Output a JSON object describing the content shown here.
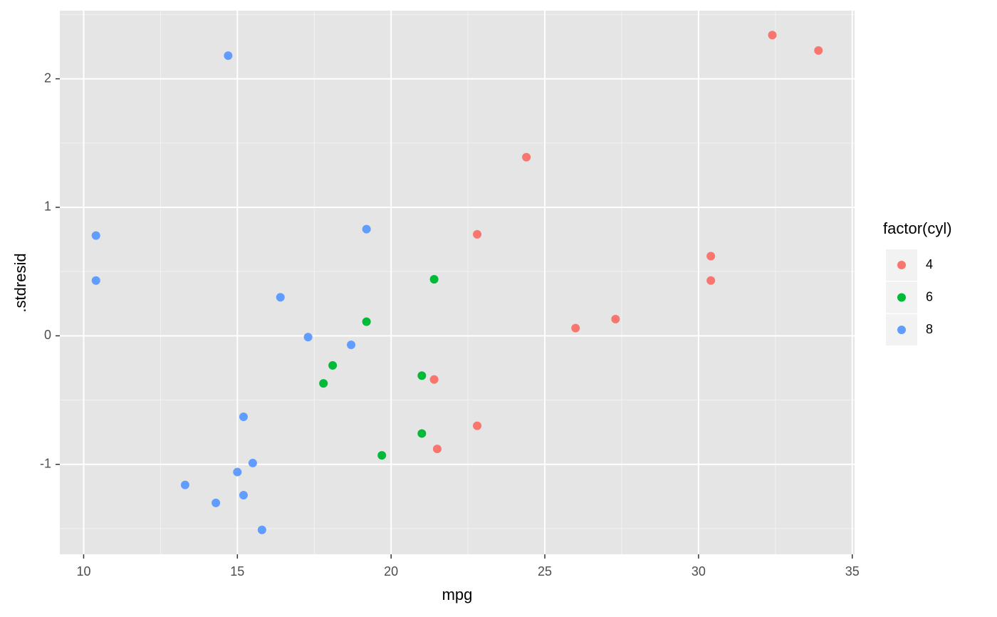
{
  "chart_data": {
    "type": "scatter",
    "x_label": "mpg",
    "y_label": ".stdresid",
    "legend_title": "factor(cyl)",
    "legend_position": "right",
    "grid": true,
    "panel_background": "#e5e5e5",
    "xlim": [
      9.225,
      35.075
    ],
    "ylim": [
      -1.7,
      2.53
    ],
    "xticks": [
      10,
      15,
      20,
      25,
      30,
      35
    ],
    "yticks": [
      -1,
      0,
      1,
      2
    ],
    "series": [
      {
        "name": "4",
        "color": "#F8766D",
        "x": [
          32.4,
          33.9,
          24.4,
          22.8,
          30.4,
          30.4,
          27.3,
          26.0,
          21.4,
          22.8,
          21.5
        ],
        "values": [
          2.34,
          2.22,
          1.39,
          0.79,
          0.62,
          0.43,
          0.13,
          0.06,
          -0.34,
          -0.7,
          -0.88
        ]
      },
      {
        "name": "6",
        "color": "#00BA38",
        "x": [
          21.4,
          19.2,
          18.1,
          17.8,
          21.0,
          21.0,
          19.7
        ],
        "values": [
          0.44,
          0.11,
          -0.23,
          -0.37,
          -0.31,
          -0.76,
          -0.93
        ]
      },
      {
        "name": "8",
        "color": "#619CFF",
        "x": [
          14.7,
          10.4,
          10.4,
          19.2,
          16.4,
          17.3,
          18.7,
          15.2,
          15.5,
          15.0,
          13.3,
          15.2,
          14.3,
          15.8
        ],
        "values": [
          2.18,
          0.78,
          0.43,
          0.83,
          0.3,
          -0.01,
          -0.07,
          -0.63,
          -0.99,
          -1.06,
          -1.16,
          -1.24,
          -1.3,
          -1.51
        ]
      }
    ]
  }
}
